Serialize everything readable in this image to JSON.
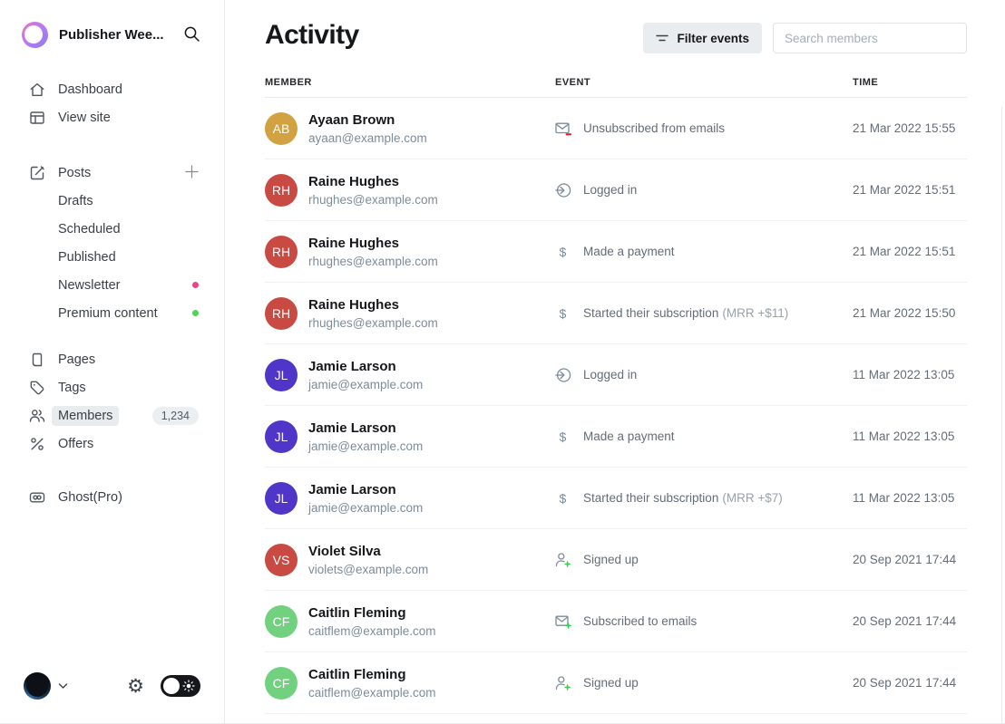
{
  "sidebar": {
    "site_title": "Publisher Wee...",
    "nav_top": [
      {
        "label": "Dashboard",
        "icon": "home-icon"
      },
      {
        "label": "View site",
        "icon": "browser-icon"
      }
    ],
    "posts": {
      "label": "Posts",
      "icon": "edit-icon",
      "add_icon": "plus-icon",
      "subitems": [
        {
          "label": "Drafts"
        },
        {
          "label": "Scheduled"
        },
        {
          "label": "Published"
        },
        {
          "label": "Newsletter",
          "dot_color": "#f0428c"
        },
        {
          "label": "Premium content",
          "dot_color": "#52d158"
        }
      ]
    },
    "nav_mid": [
      {
        "label": "Pages",
        "icon": "pages-icon"
      },
      {
        "label": "Tags",
        "icon": "tag-icon"
      },
      {
        "label": "Members",
        "icon": "members-icon",
        "badge": "1,234",
        "active": true
      },
      {
        "label": "Offers",
        "icon": "percent-icon"
      }
    ],
    "nav_bottom": [
      {
        "label": "Ghost(Pro)",
        "icon": "ghost-pro-icon"
      }
    ]
  },
  "header": {
    "title": "Activity",
    "filter_button": "Filter events",
    "search_placeholder": "Search members"
  },
  "table": {
    "columns": [
      "MEMBER",
      "EVENT",
      "TIME"
    ],
    "rows": [
      {
        "initials": "AB",
        "avatar_color": "#d2a142",
        "name": "Ayaan Brown",
        "email": "ayaan@example.com",
        "icon": "email-minus-icon",
        "event": "Unsubscribed from emails",
        "detail": "",
        "time": "21 Mar 2022 15:55"
      },
      {
        "initials": "RH",
        "avatar_color": "#c94a42",
        "name": "Raine Hughes",
        "email": "rhughes@example.com",
        "icon": "login-icon",
        "event": "Logged in",
        "detail": "",
        "time": "21 Mar 2022 15:51"
      },
      {
        "initials": "RH",
        "avatar_color": "#c94a42",
        "name": "Raine Hughes",
        "email": "rhughes@example.com",
        "icon": "dollar-icon",
        "event": "Made a payment",
        "detail": "",
        "time": "21 Mar 2022 15:51"
      },
      {
        "initials": "RH",
        "avatar_color": "#c94a42",
        "name": "Raine Hughes",
        "email": "rhughes@example.com",
        "icon": "dollar-icon",
        "event": "Started their subscription",
        "detail": "(MRR +$11)",
        "time": "21 Mar 2022 15:50"
      },
      {
        "initials": "JL",
        "avatar_color": "#4f35c8",
        "name": "Jamie Larson",
        "email": "jamie@example.com",
        "icon": "login-icon",
        "event": "Logged in",
        "detail": "",
        "time": "11 Mar 2022 13:05"
      },
      {
        "initials": "JL",
        "avatar_color": "#4f35c8",
        "name": "Jamie Larson",
        "email": "jamie@example.com",
        "icon": "dollar-icon",
        "event": "Made a payment",
        "detail": "",
        "time": "11 Mar 2022 13:05"
      },
      {
        "initials": "JL",
        "avatar_color": "#4f35c8",
        "name": "Jamie Larson",
        "email": "jamie@example.com",
        "icon": "dollar-icon",
        "event": "Started their subscription",
        "detail": "(MRR +$7)",
        "time": "11 Mar 2022 13:05"
      },
      {
        "initials": "VS",
        "avatar_color": "#c94a42",
        "name": "Violet Silva",
        "email": "violets@example.com",
        "icon": "user-plus-icon",
        "event": "Signed up",
        "detail": "",
        "time": "20 Sep 2021 17:44"
      },
      {
        "initials": "CF",
        "avatar_color": "#71d17f",
        "name": "Caitlin Fleming",
        "email": "caitflem@example.com",
        "icon": "email-plus-icon",
        "event": "Subscribed to emails",
        "detail": "",
        "time": "20 Sep 2021 17:44"
      },
      {
        "initials": "CF",
        "avatar_color": "#71d17f",
        "name": "Caitlin Fleming",
        "email": "caitflem@example.com",
        "icon": "user-plus-icon",
        "event": "Signed up",
        "detail": "",
        "time": "20 Sep 2021 17:44"
      }
    ]
  }
}
